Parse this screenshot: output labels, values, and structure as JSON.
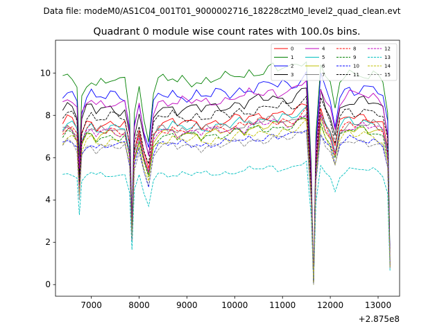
{
  "suptitle": "Data file: modeM0/AS1C04_001T01_9000002716_18228cztM0_level2_quad_clean.evt",
  "chart_data": {
    "type": "line",
    "title": "Quadrant 0 module wise count rates with 100.0s bins.",
    "xlabel": "",
    "ylabel": "",
    "x_offset_label": "+2.875e8",
    "xlim": [
      6250,
      13450
    ],
    "ylim": [
      -0.55,
      11.55
    ],
    "xticks": [
      7000,
      8000,
      9000,
      10000,
      11000,
      12000,
      13000
    ],
    "xtick_labels": [
      "7000",
      "8000",
      "9000",
      "10000",
      "11000",
      "12000",
      "13000"
    ],
    "yticks": [
      0,
      2,
      4,
      6,
      8,
      10
    ],
    "ytick_labels": [
      "0",
      "2",
      "4",
      "6",
      "8",
      "10"
    ],
    "x": [
      6400,
      6500,
      6600,
      6700,
      6750,
      6800,
      6900,
      7000,
      7100,
      7200,
      7300,
      7400,
      7500,
      7600,
      7700,
      7800,
      7850,
      7900,
      8000,
      8100,
      8200,
      8300,
      8400,
      8500,
      8600,
      8700,
      8800,
      8900,
      9000,
      9100,
      9200,
      9300,
      9400,
      9500,
      9600,
      9700,
      9800,
      9900,
      10000,
      10100,
      10200,
      10300,
      10400,
      10500,
      10600,
      10700,
      10800,
      10900,
      11000,
      11100,
      11200,
      11300,
      11400,
      11500,
      11600,
      11650,
      11700,
      11800,
      11900,
      12000,
      12100,
      12200,
      12300,
      12400,
      12500,
      12600,
      12700,
      12800,
      12900,
      13000,
      13100,
      13200,
      13250
    ],
    "base": [
      1.0,
      1.03,
      1.02,
      0.97,
      0.62,
      0.93,
      1.0,
      1.02,
      0.98,
      1.0,
      0.99,
      1.01,
      1.0,
      0.99,
      1.0,
      0.85,
      0.32,
      0.85,
      0.97,
      0.82,
      0.72,
      0.95,
      1.0,
      1.01,
      1.0,
      1.02,
      0.99,
      1.01,
      1.0,
      1.0,
      1.02,
      0.99,
      1.01,
      1.0,
      1.02,
      1.01,
      1.02,
      1.01,
      1.03,
      1.04,
      1.02,
      1.05,
      1.04,
      1.06,
      1.05,
      1.06,
      1.07,
      1.05,
      1.07,
      1.06,
      1.06,
      1.08,
      1.1,
      1.12,
      0.6,
      0.0,
      0.75,
      1.1,
      1.02,
      0.97,
      0.85,
      1.0,
      1.03,
      1.05,
      1.03,
      1.04,
      1.05,
      1.03,
      1.04,
      1.02,
      1.0,
      0.85,
      0.12
    ],
    "legend": {
      "location": "upper right",
      "columns": 4
    },
    "series": [
      {
        "name": "0",
        "color": "#ff0000",
        "style": "solid",
        "level": 7.6
      },
      {
        "name": "1",
        "color": "#008000",
        "style": "solid",
        "level": 9.6
      },
      {
        "name": "2",
        "color": "#0000ff",
        "style": "solid",
        "level": 8.9
      },
      {
        "name": "3",
        "color": "#000000",
        "style": "solid",
        "level": 8.3
      },
      {
        "name": "4",
        "color": "#bf00bf",
        "style": "solid",
        "level": 8.6
      },
      {
        "name": "5",
        "color": "#00bfbf",
        "style": "solid",
        "level": 7.4
      },
      {
        "name": "6",
        "color": "#bfbf00",
        "style": "solid",
        "level": 7.1
      },
      {
        "name": "7",
        "color": "#808080",
        "style": "solid",
        "level": 7.3
      },
      {
        "name": "8",
        "color": "#ff0000",
        "style": "dashed",
        "level": 7.3
      },
      {
        "name": "9",
        "color": "#008000",
        "style": "dashed",
        "level": 7.0
      },
      {
        "name": "10",
        "color": "#0000ff",
        "style": "dashed",
        "level": 6.6
      },
      {
        "name": "11",
        "color": "#000000",
        "style": "dashed",
        "level": 7.9
      },
      {
        "name": "12",
        "color": "#bf00bf",
        "style": "dashed",
        "level": 7.2
      },
      {
        "name": "13",
        "color": "#00bfbf",
        "style": "dashed",
        "level": 5.2
      },
      {
        "name": "14",
        "color": "#bfbf00",
        "style": "dashed",
        "level": 6.8
      },
      {
        "name": "15",
        "color": "#808080",
        "style": "dashed",
        "level": 6.5
      }
    ]
  }
}
